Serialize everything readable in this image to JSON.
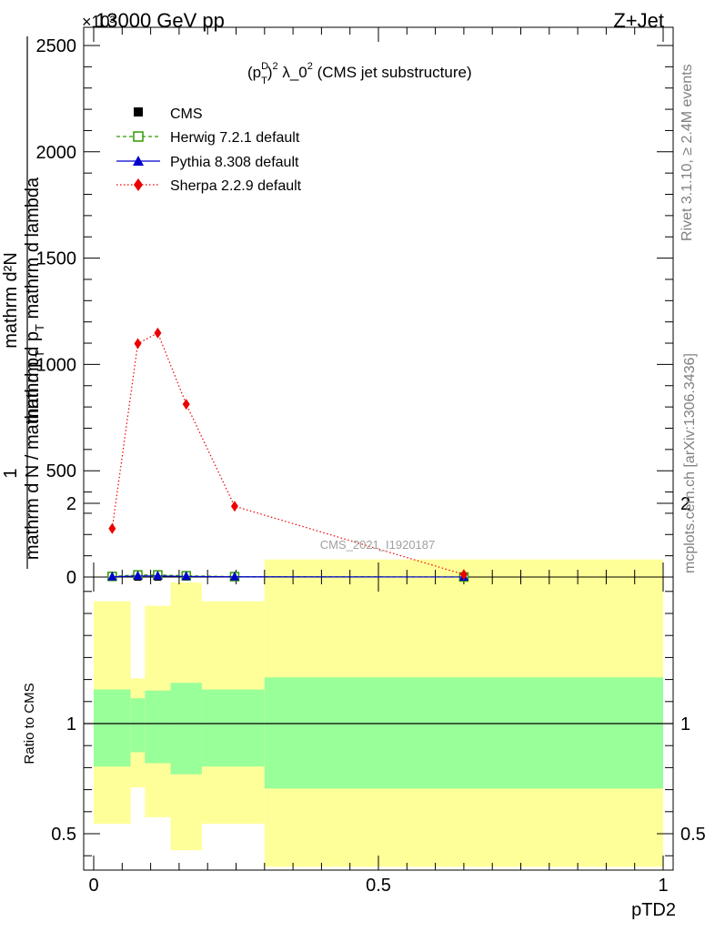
{
  "header": {
    "left": "13000 GeV pp",
    "right": "Z+Jet",
    "exponent": "×10³"
  },
  "side_labels": {
    "rivet": "Rivet 3.1.10, ≥ 2.4M events",
    "mcplots": "mcplots.cern.ch [arXiv:1306.3436]"
  },
  "watermark": "CMS_2021_I1920187",
  "colors": {
    "herwig": "#339900",
    "pythia": "#0000cc",
    "sherpa": "#ee0000",
    "band_outer": "#ffff99",
    "band_inner": "#99ff99"
  },
  "chart_data": [
    {
      "type": "line",
      "panel": "main",
      "title": "(p_T^D)^2 λ_0^2 (CMS jet substructure)",
      "title_parts": {
        "a": "(p",
        "sup1": "D",
        "sub1": "T",
        "b": ")",
        "sup2": "2",
        "c": " λ_0",
        "sup3": "2",
        "d": " (CMS jet substructure)"
      },
      "ylabel": "1 / mathrm d N / mathrm d p_T  mathrm d^2N / mathrm d p_T mathrm d lambda",
      "ylabel_parts": {
        "numerator_top": "mathrm d²N",
        "numerator_bottom": "mathrm d p",
        "numerator_sub": "T",
        "numerator_tail": " mathrm d lambda",
        "denominator": "mathrm d N / mathrm d p",
        "denominator_sub": "T",
        "one": "1"
      },
      "xlim": [
        0,
        1
      ],
      "ylim": [
        0,
        2600
      ],
      "y_scale_exponent": 3,
      "yticks": [
        0,
        500,
        1000,
        1500,
        2000,
        2500
      ],
      "ytick_labels": [
        "0",
        "500",
        "1000",
        "1500",
        "2000",
        "2500"
      ],
      "legend": [
        "CMS",
        "Herwig 7.2.1 default",
        "Pythia 8.308 default",
        "Sherpa 2.2.9 default"
      ],
      "legend_position": "top-left",
      "x": [
        0.0325,
        0.0775,
        0.1125,
        0.1625,
        0.2475,
        0.65
      ],
      "series": [
        {
          "name": "CMS",
          "marker": "square",
          "values": [
            0,
            0,
            0,
            0,
            0,
            0
          ]
        },
        {
          "name": "Herwig 7.2.1 default",
          "marker": "open-square",
          "line": "dashed",
          "values": [
            3,
            10,
            10,
            6,
            2,
            0.3
          ]
        },
        {
          "name": "Pythia 8.308 default",
          "marker": "triangle",
          "line": "solid",
          "values": [
            1,
            5,
            5,
            3,
            1,
            0.2
          ]
        },
        {
          "name": "Sherpa 2.2.9 default",
          "marker": "diamond",
          "line": "dotted",
          "values": [
            228,
            1098,
            1148,
            813,
            333,
            12
          ]
        }
      ]
    },
    {
      "type": "area",
      "panel": "ratio",
      "ylabel": "Ratio to CMS",
      "xlabel": "pTD2",
      "xlim": [
        0,
        1
      ],
      "ylim": [
        0.35,
        2.3
      ],
      "yticks": [
        0.5,
        1,
        2
      ],
      "ytick_labels": [
        "0.5",
        "1",
        "2"
      ],
      "xticks": [
        0,
        0.5,
        1
      ],
      "xtick_labels": [
        "0",
        "0.5",
        "1"
      ],
      "bins": [
        {
          "x0": 0.0,
          "x1": 0.065,
          "outer_lo": 0.545,
          "outer_hi": 1.555,
          "inner_lo": 0.805,
          "inner_hi": 1.155
        },
        {
          "x0": 0.065,
          "x1": 0.09,
          "outer_lo": 0.71,
          "outer_hi": 1.205,
          "inner_lo": 0.87,
          "inner_hi": 1.115
        },
        {
          "x0": 0.09,
          "x1": 0.135,
          "outer_lo": 0.575,
          "outer_hi": 1.535,
          "inner_lo": 0.82,
          "inner_hi": 1.15
        },
        {
          "x0": 0.135,
          "x1": 0.19,
          "outer_lo": 0.425,
          "outer_hi": 1.64,
          "inner_lo": 0.77,
          "inner_hi": 1.185
        },
        {
          "x0": 0.19,
          "x1": 0.3,
          "outer_lo": 0.545,
          "outer_hi": 1.555,
          "inner_lo": 0.805,
          "inner_hi": 1.155
        },
        {
          "x0": 0.3,
          "x1": 1.0,
          "outer_lo": 0.35,
          "outer_hi": 1.745,
          "inner_lo": 0.705,
          "inner_hi": 1.21
        }
      ],
      "reference_line": 1
    }
  ]
}
